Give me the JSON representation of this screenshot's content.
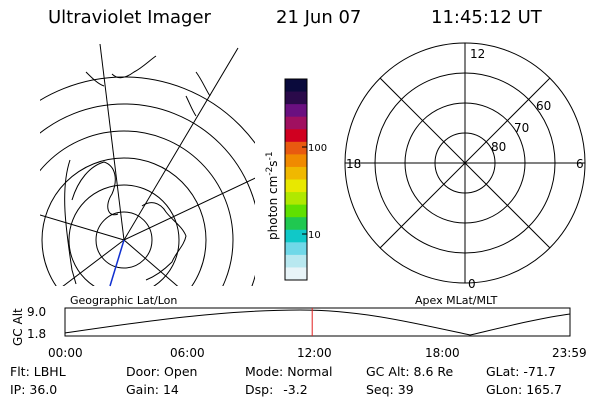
{
  "header": {
    "instrument": "Ultraviolet Imager",
    "date": "21 Jun 07",
    "time": "11:45:12 UT"
  },
  "colorbar": {
    "unit_label": "photon cm",
    "unit_sup1": "-2",
    "unit_mid": "s",
    "unit_sup2": "-1",
    "ticks": [
      "100",
      "10"
    ],
    "colors": [
      "#0a0a3c",
      "#2a0a4a",
      "#6a1080",
      "#a01060",
      "#d00020",
      "#e85a10",
      "#f08a00",
      "#f0b800",
      "#e8e800",
      "#b0e800",
      "#60e000",
      "#20c850",
      "#10c8c8",
      "#70d8e8",
      "#b8e8f0",
      "#e8f4f8"
    ]
  },
  "left_panel": {
    "caption": "Geographic Lat/Lon"
  },
  "right_panel": {
    "caption": "Apex MLat/MLT",
    "mlt_labels": {
      "top": "12",
      "left": "18",
      "right": "6",
      "bottom": "0"
    },
    "lat_labels": [
      "60",
      "70",
      "80"
    ]
  },
  "altitude_plot": {
    "ylabel": "GC Alt",
    "ytick_top": "9.0",
    "ytick_bottom": "1.8",
    "x_ticks": [
      "00:00",
      "06:00",
      "12:00",
      "18:00",
      "23:59"
    ],
    "current_time_marker_hours": 11.75
  },
  "status": {
    "flt_label": "Flt:",
    "flt_value": "LBHL",
    "door_label": "Door:",
    "door_value": "Open",
    "mode_label": "Mode:",
    "mode_value": "Normal",
    "gcalt_label": "GC Alt:",
    "gcalt_value": "8.6 Re",
    "glat_label": "GLat:",
    "glat_value": "-71.7",
    "ip_label": "IP:",
    "ip_value": "36.0",
    "gain_label": "Gain:",
    "gain_value": "14",
    "dsp_label": "Dsp:",
    "dsp_value": "-3.2",
    "seq_label": "Seq:",
    "seq_value": "39",
    "glon_label": "GLon:",
    "glon_value": "165.7"
  }
}
